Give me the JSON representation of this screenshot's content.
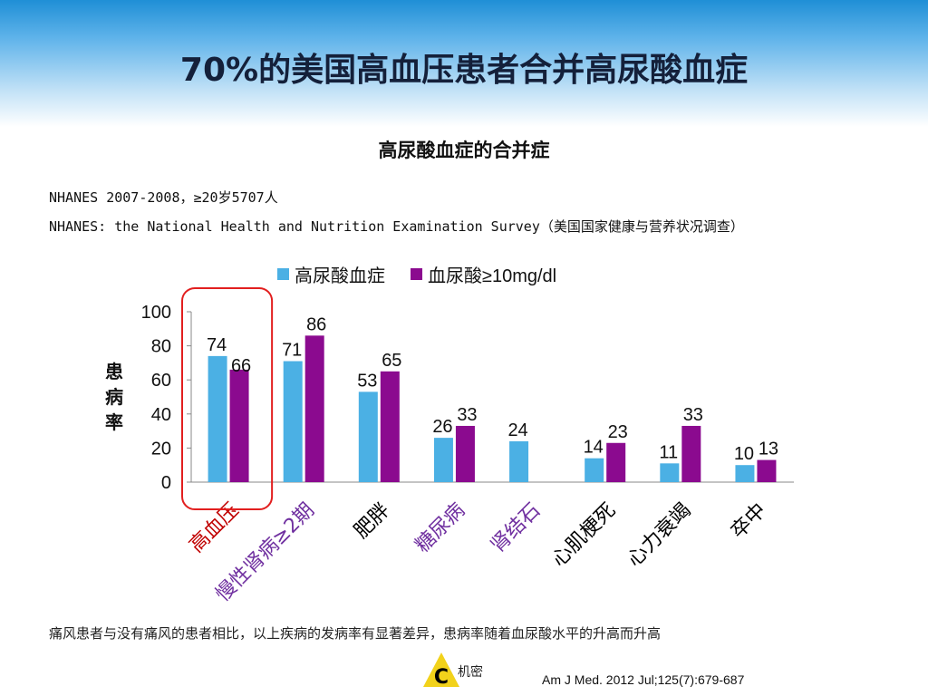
{
  "slide": {
    "title": "70%的美国高血压患者合并高尿酸血症",
    "subtitle": "高尿酸血症的合并症",
    "info_line1": "NHANES 2007-2008，≥20岁5707人",
    "info_line2": "NHANES: the National Health and Nutrition Examination Survey（美国国家健康与营养状况调查）",
    "footnote": "痛风患者与没有痛风的患者相比，以上疾病的发病率有显著差异，患病率随着血尿酸水平的升高而升高",
    "logo_text": "机密",
    "logo_letter": "C",
    "citation": "Am J Med. 2012 Jul;125(7):679-687"
  },
  "chart_data": {
    "type": "bar",
    "title": "高尿酸血症的合并症",
    "ylabel": "患病率",
    "ylim": [
      0,
      100
    ],
    "yticks": [
      0,
      20,
      40,
      60,
      80,
      100
    ],
    "categories": [
      "高血压",
      "慢性肾病≥2期",
      "肥胖",
      "糖尿病",
      "肾结石",
      "心肌梗死",
      "心力衰竭",
      "卒中"
    ],
    "category_colors": [
      "#c00000",
      "#7030a0",
      "#000000",
      "#7030a0",
      "#7030a0",
      "#000000",
      "#000000",
      "#000000"
    ],
    "series": [
      {
        "name": "高尿酸血症",
        "color": "#4bb0e4",
        "values": [
          74,
          71,
          53,
          26,
          24,
          14,
          11,
          10
        ]
      },
      {
        "name": "血尿酸≥10mg/dl",
        "color": "#8b0a8f",
        "values": [
          66,
          86,
          65,
          33,
          null,
          23,
          33,
          13
        ]
      }
    ],
    "legend_position": "top",
    "grid": false,
    "highlight_category": "高血压",
    "highlight_color": "#e21f1f"
  }
}
